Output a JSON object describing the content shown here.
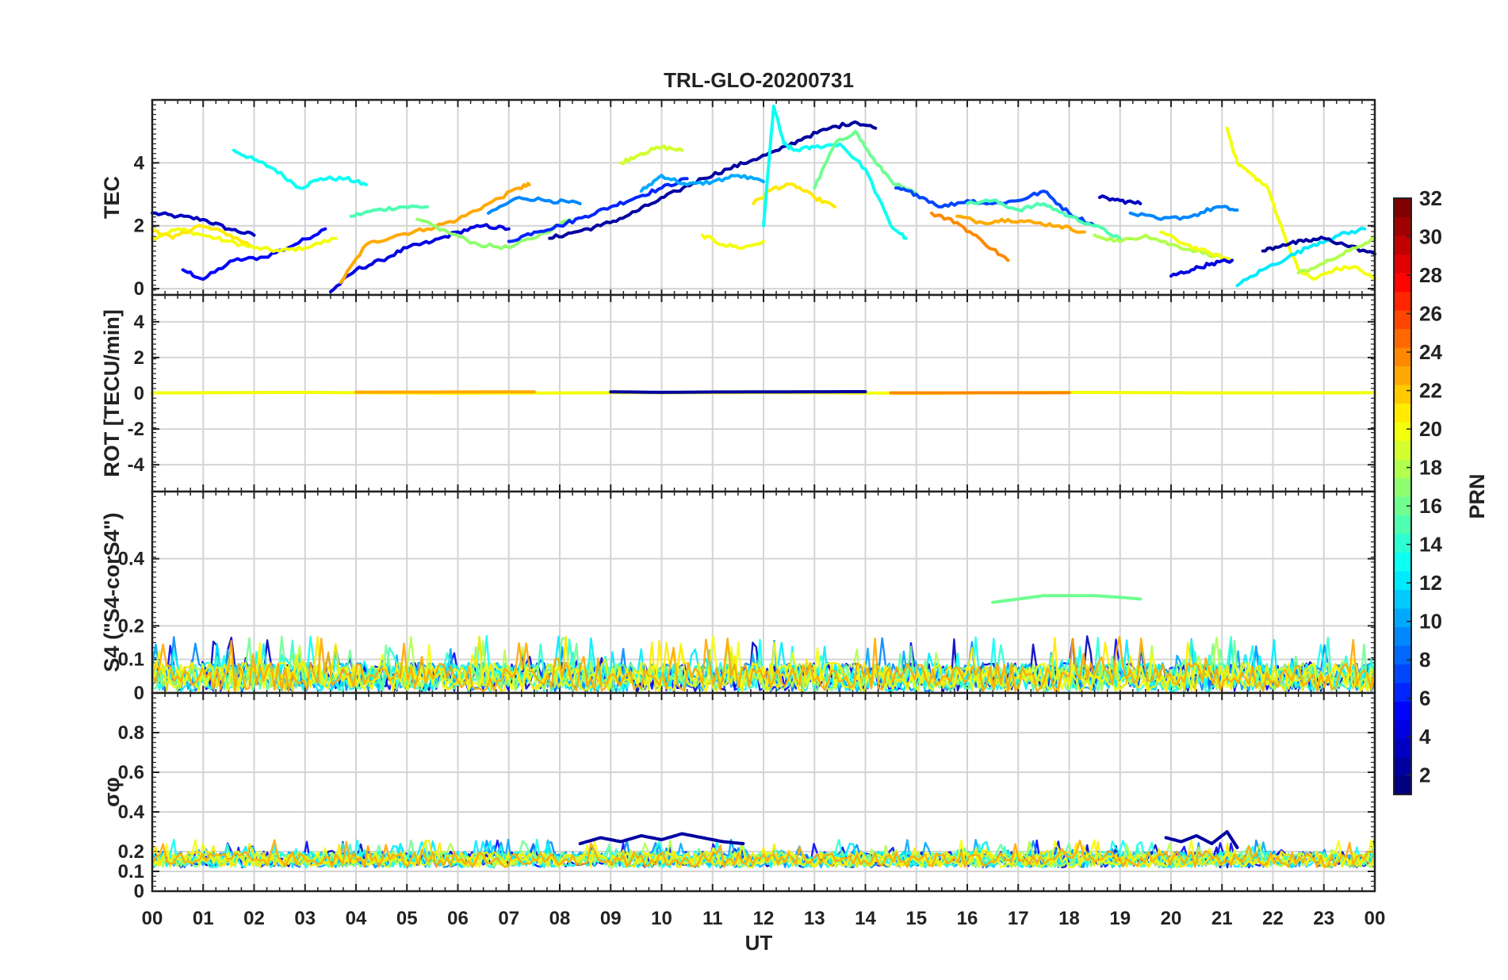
{
  "chart_data": {
    "type": "line",
    "title": "TRL-GLO-20200731",
    "xlabel": "UT",
    "x_ticks": [
      "00",
      "01",
      "02",
      "03",
      "04",
      "05",
      "06",
      "07",
      "08",
      "09",
      "10",
      "11",
      "12",
      "13",
      "14",
      "15",
      "16",
      "17",
      "18",
      "19",
      "20",
      "21",
      "22",
      "23",
      "00"
    ],
    "xlim": [
      0,
      24
    ],
    "colorbar": {
      "label": "PRN",
      "range": [
        1,
        32
      ],
      "ticks": [
        "2",
        "4",
        "6",
        "8",
        "10",
        "12",
        "14",
        "16",
        "18",
        "20",
        "22",
        "24",
        "26",
        "28",
        "30",
        "32"
      ]
    },
    "panels": [
      {
        "ylabel": "TEC",
        "ylim": [
          -0.2,
          6
        ],
        "y_ticks": [
          {
            "v": 0,
            "label": "0"
          },
          {
            "v": 2,
            "label": "2"
          },
          {
            "v": 4,
            "label": "4"
          }
        ],
        "series": [
          {
            "prn": 3,
            "x": [
              0,
              0.5,
              1,
              1.5,
              2
            ],
            "y": [
              2.4,
              2.3,
              2.2,
              1.9,
              1.7
            ]
          },
          {
            "prn": 5,
            "x": [
              0.6,
              1,
              1.6,
              2.2,
              2.8,
              3.4
            ],
            "y": [
              0.6,
              0.3,
              0.9,
              1.0,
              1.4,
              1.9
            ]
          },
          {
            "prn": 20,
            "x": [
              0,
              0.5,
              1,
              1.5,
              2,
              2.5,
              3,
              3.6
            ],
            "y": [
              1.6,
              1.9,
              1.7,
              1.5,
              1.3,
              1.2,
              1.3,
              1.6
            ]
          },
          {
            "prn": 21,
            "x": [
              0,
              0.4,
              0.9,
              1.4,
              1.9
            ],
            "y": [
              1.9,
              1.6,
              2.0,
              1.8,
              1.4
            ]
          },
          {
            "prn": 13,
            "x": [
              1.6,
              2,
              2.4,
              2.9,
              3.3,
              3.8,
              4.2
            ],
            "y": [
              4.4,
              4.1,
              3.8,
              3.2,
              3.5,
              3.5,
              3.3
            ]
          },
          {
            "prn": 15,
            "x": [
              3.9,
              4.4,
              4.9,
              5.4
            ],
            "y": [
              2.3,
              2.5,
              2.6,
              2.6
            ]
          },
          {
            "prn": 4,
            "x": [
              3.5,
              4,
              4.5,
              5,
              5.5,
              6,
              6.5,
              7
            ],
            "y": [
              -0.1,
              0.6,
              0.9,
              1.3,
              1.5,
              1.8,
              2.0,
              1.9
            ]
          },
          {
            "prn": 23,
            "x": [
              3.7,
              4.2,
              4.8,
              5.4,
              6,
              6.6,
              7.2,
              7.4
            ],
            "y": [
              0.2,
              1.4,
              1.7,
              1.9,
              2.2,
              2.7,
              3.2,
              3.3
            ]
          },
          {
            "prn": 9,
            "x": [
              6.6,
              7.2,
              7.8,
              8.4
            ],
            "y": [
              2.4,
              2.9,
              2.8,
              2.7
            ]
          },
          {
            "prn": 17,
            "x": [
              5.2,
              5.8,
              6.4,
              7,
              7.6,
              8.2
            ],
            "y": [
              2.2,
              1.8,
              1.4,
              1.3,
              1.7,
              2.2
            ]
          },
          {
            "prn": 6,
            "x": [
              7,
              7.5,
              8,
              8.5,
              9,
              9.5,
              10,
              10.5
            ],
            "y": [
              1.5,
              1.8,
              2.0,
              2.3,
              2.6,
              2.9,
              3.2,
              3.5
            ]
          },
          {
            "prn": 2,
            "x": [
              7.8,
              8.3,
              8.8,
              9.3,
              9.8,
              10.3,
              10.8,
              11.3,
              11.8,
              12.3,
              12.8,
              13.3,
              13.8,
              14.2
            ],
            "y": [
              1.6,
              1.8,
              2.0,
              2.3,
              2.7,
              3.1,
              3.5,
              3.8,
              4.1,
              4.4,
              4.8,
              5.1,
              5.3,
              5.1
            ]
          },
          {
            "prn": 19,
            "x": [
              9.2,
              9.6,
              10,
              10.4
            ],
            "y": [
              4.0,
              4.3,
              4.5,
              4.4
            ]
          },
          {
            "prn": 10,
            "x": [
              9.6,
              10,
              10.5,
              11,
              11.5,
              12
            ],
            "y": [
              3.1,
              3.6,
              3.3,
              3.4,
              3.6,
              3.4
            ]
          },
          {
            "prn": 20,
            "x": [
              10.8,
              11.2,
              11.6,
              12
            ],
            "y": [
              1.7,
              1.4,
              1.3,
              1.5
            ]
          },
          {
            "prn": 21,
            "x": [
              11.8,
              12.2,
              12.6,
              13,
              13.4
            ],
            "y": [
              2.7,
              3.2,
              3.3,
              2.9,
              2.6
            ]
          },
          {
            "prn": 13,
            "x": [
              12,
              12.2,
              12.4,
              12.6,
              13,
              13.5,
              14,
              14.5,
              14.8
            ],
            "y": [
              2.0,
              5.8,
              4.6,
              4.4,
              4.5,
              4.6,
              3.8,
              2.0,
              1.6
            ]
          },
          {
            "prn": 16,
            "x": [
              13,
              13.4,
              13.8,
              14.2,
              14.6,
              15
            ],
            "y": [
              3.2,
              4.6,
              5.0,
              4.0,
              3.3,
              3.0
            ]
          },
          {
            "prn": 7,
            "x": [
              14.6,
              15,
              15.5,
              16,
              16.5,
              17,
              17.5,
              18,
              18.5
            ],
            "y": [
              3.2,
              3.0,
              2.6,
              2.8,
              2.7,
              2.8,
              3.1,
              2.4,
              2.0
            ]
          },
          {
            "prn": 24,
            "x": [
              15.3,
              15.8,
              16.3,
              16.8
            ],
            "y": [
              2.4,
              2.1,
              1.5,
              0.9
            ]
          },
          {
            "prn": 23,
            "x": [
              15.8,
              16.3,
              16.8,
              17.3,
              17.8,
              18.3
            ],
            "y": [
              2.3,
              2.1,
              2.2,
              2.1,
              2.0,
              1.8
            ]
          },
          {
            "prn": 15,
            "x": [
              16,
              16.5,
              17,
              17.5,
              18,
              18.5,
              19
            ],
            "y": [
              2.7,
              2.8,
              2.5,
              2.7,
              2.3,
              2.0,
              1.6
            ]
          },
          {
            "prn": 3,
            "x": [
              18.6,
              19,
              19.4
            ],
            "y": [
              2.9,
              2.8,
              2.7
            ]
          },
          {
            "prn": 18,
            "x": [
              18.5,
              19,
              19.5,
              20,
              20.5,
              21
            ],
            "y": [
              1.7,
              1.5,
              1.7,
              1.4,
              1.2,
              1.0
            ]
          },
          {
            "prn": 9,
            "x": [
              19.2,
              19.8,
              20.4,
              20.9,
              21.3
            ],
            "y": [
              2.4,
              2.2,
              2.3,
              2.6,
              2.5
            ]
          },
          {
            "prn": 20,
            "x": [
              19.8,
              20.3,
              20.8,
              21.2
            ],
            "y": [
              1.8,
              1.4,
              1.1,
              0.9
            ]
          },
          {
            "prn": 20,
            "x": [
              21.1,
              21.3,
              21.6,
              21.9,
              22.2,
              22.5,
              22.8,
              23.2,
              23.6,
              24
            ],
            "y": [
              5.1,
              4.0,
              3.6,
              3.2,
              1.8,
              0.6,
              0.3,
              0.6,
              0.7,
              0.3
            ]
          },
          {
            "prn": 4,
            "x": [
              20,
              20.4,
              20.8,
              21.2
            ],
            "y": [
              0.4,
              0.6,
              0.8,
              0.9
            ]
          },
          {
            "prn": 12,
            "x": [
              21.3,
              21.8,
              22.3,
              22.8,
              23.3,
              23.8
            ],
            "y": [
              0.1,
              0.6,
              1.0,
              1.4,
              1.7,
              1.9
            ]
          },
          {
            "prn": 2,
            "x": [
              21.8,
              22.2,
              22.6,
              23,
              23.4,
              24
            ],
            "y": [
              1.2,
              1.4,
              1.5,
              1.6,
              1.4,
              1.1
            ]
          },
          {
            "prn": 18,
            "x": [
              22.5,
              23,
              23.5,
              24
            ],
            "y": [
              0.5,
              0.8,
              1.2,
              1.6
            ]
          }
        ]
      },
      {
        "ylabel": "ROT [TECU/min]",
        "ylim": [
          -5.5,
          5.5
        ],
        "y_ticks": [
          {
            "v": -4,
            "label": "-4"
          },
          {
            "v": -2,
            "label": "-2"
          },
          {
            "v": 0,
            "label": "0"
          },
          {
            "v": 2,
            "label": "2"
          },
          {
            "v": 4,
            "label": "4"
          }
        ],
        "series": [
          {
            "prn": 20,
            "x": [
              0,
              3,
              6,
              9,
              12,
              15,
              18,
              21,
              24
            ],
            "y": [
              0.02,
              0.05,
              0.0,
              0.03,
              0.04,
              0.0,
              0.05,
              0.02,
              0.03
            ]
          },
          {
            "prn": 23,
            "x": [
              4,
              7.5
            ],
            "y": [
              0.06,
              0.08
            ]
          },
          {
            "prn": 24,
            "x": [
              14.5,
              18
            ],
            "y": [
              0.02,
              0.03
            ]
          },
          {
            "prn": 2,
            "x": [
              9,
              10,
              11,
              14
            ],
            "y": [
              0.08,
              0.05,
              0.07,
              0.09
            ]
          }
        ]
      },
      {
        "ylabel": "S4 (\"S4-corS4\")",
        "ylim": [
          0,
          0.6
        ],
        "y_ticks": [
          {
            "v": 0,
            "label": "0"
          },
          {
            "v": 0.1,
            "label": "0.1"
          },
          {
            "v": 0.2,
            "label": "0.2"
          },
          {
            "v": 0.4,
            "label": "0.4"
          }
        ],
        "band": {
          "min": 0.005,
          "max": 0.09,
          "spike_max": 0.17
        },
        "series": [
          {
            "prn": 16,
            "x": [
              16.5,
              17,
              17.5,
              18,
              18.5,
              19,
              19.4
            ],
            "y": [
              0.27,
              0.28,
              0.29,
              0.29,
              0.29,
              0.285,
              0.28
            ]
          }
        ]
      },
      {
        "ylabel": "σφ",
        "ylim": [
          0,
          1
        ],
        "y_ticks": [
          {
            "v": 0,
            "label": "0"
          },
          {
            "v": 0.1,
            "label": "0.1"
          },
          {
            "v": 0.2,
            "label": "0.2"
          },
          {
            "v": 0.4,
            "label": "0.4"
          },
          {
            "v": 0.6,
            "label": "0.6"
          },
          {
            "v": 0.8,
            "label": "0.8"
          }
        ],
        "band": {
          "min": 0.12,
          "max": 0.2,
          "spike_max": 0.26
        },
        "series": [
          {
            "prn": 2,
            "x": [
              8.4,
              8.8,
              9.2,
              9.6,
              10,
              10.4,
              10.8,
              11.2,
              11.6
            ],
            "y": [
              0.24,
              0.27,
              0.25,
              0.28,
              0.26,
              0.29,
              0.27,
              0.25,
              0.24
            ]
          },
          {
            "prn": 2,
            "x": [
              19.9,
              20.2,
              20.5,
              20.8,
              21.1,
              21.3
            ],
            "y": [
              0.27,
              0.25,
              0.28,
              0.24,
              0.3,
              0.22
            ]
          }
        ]
      }
    ]
  }
}
